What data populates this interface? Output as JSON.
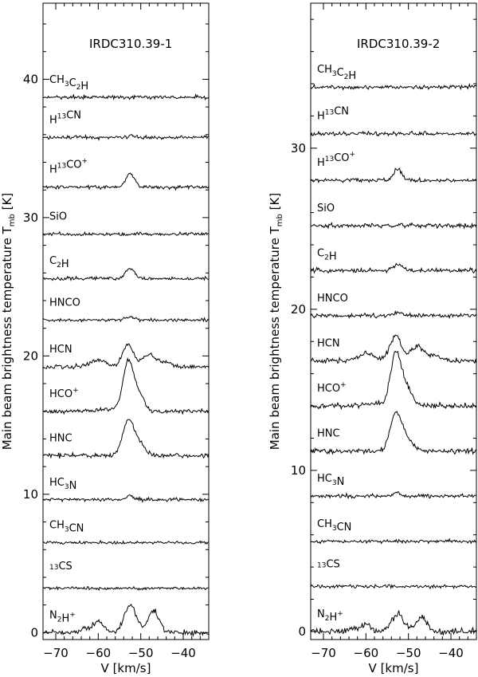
{
  "figure": {
    "shared_ylabel": "Main beam brightness temperature T",
    "ylabel_subscript": "mb",
    "ylabel_unit": " [K]",
    "xlabel": "V [km/s]"
  },
  "chart_data": [
    {
      "type": "line",
      "title": "IRDC310.39-1",
      "xlabel": "V [km/s]",
      "ylabel": "Main beam brightness temperature Tmb [K]",
      "xlim": [
        -73,
        -34
      ],
      "ylim": [
        -0.5,
        45.5
      ],
      "xticks": [
        -70,
        -60,
        -50,
        -40
      ],
      "yticks": [
        0,
        10,
        20,
        30,
        40
      ],
      "series": [
        {
          "name": "CH3C2H",
          "label_main": "CH",
          "label_parts": [
            [
              "CH",
              ""
            ],
            [
              "3",
              "sub"
            ],
            [
              "C",
              ""
            ],
            [
              "2",
              "sub"
            ],
            [
              "H",
              ""
            ]
          ],
          "offset": 38.7,
          "peak": 0.0,
          "rms": 0.12
        },
        {
          "name": "H13CN",
          "label_parts": [
            [
              "H",
              ""
            ],
            [
              "13",
              "sup"
            ],
            [
              "CN",
              ""
            ]
          ],
          "offset": 35.8,
          "peak": 0.1,
          "rms": 0.12
        },
        {
          "name": "H13CO+",
          "label_parts": [
            [
              "H",
              ""
            ],
            [
              "13",
              "sup"
            ],
            [
              "CO",
              ""
            ],
            [
              "+",
              "sup"
            ]
          ],
          "offset": 32.2,
          "peak": 1.0,
          "rms": 0.12
        },
        {
          "name": "SiO",
          "label_parts": [
            [
              "SiO",
              ""
            ]
          ],
          "offset": 28.8,
          "peak": 0.0,
          "rms": 0.12
        },
        {
          "name": "C2H",
          "label_parts": [
            [
              "C",
              ""
            ],
            [
              "2",
              "sub"
            ],
            [
              "H",
              ""
            ]
          ],
          "offset": 25.6,
          "peak": 0.7,
          "rms": 0.12
        },
        {
          "name": "HNCO",
          "label_parts": [
            [
              "HNCO",
              ""
            ]
          ],
          "offset": 22.6,
          "peak": 0.2,
          "rms": 0.12
        },
        {
          "name": "HCN",
          "label_parts": [
            [
              "HCN",
              ""
            ]
          ],
          "offset": 19.2,
          "peak": 1.6,
          "rms": 0.15
        },
        {
          "name": "HCO+",
          "label_parts": [
            [
              "HCO",
              ""
            ],
            [
              "+",
              "sup"
            ]
          ],
          "offset": 16.0,
          "peak": 3.5,
          "rms": 0.15
        },
        {
          "name": "HNC",
          "label_parts": [
            [
              "HNC",
              ""
            ]
          ],
          "offset": 12.8,
          "peak": 2.4,
          "rms": 0.15
        },
        {
          "name": "HC3N",
          "label_parts": [
            [
              "HC",
              ""
            ],
            [
              "3",
              "sub"
            ],
            [
              "N",
              ""
            ]
          ],
          "offset": 9.6,
          "peak": 0.3,
          "rms": 0.12
        },
        {
          "name": "CH3CN",
          "label_parts": [
            [
              "CH",
              ""
            ],
            [
              "3",
              "sub"
            ],
            [
              "CN",
              ""
            ]
          ],
          "offset": 6.5,
          "peak": 0.0,
          "rms": 0.1
        },
        {
          "name": "13CS",
          "label_parts": [
            [
              "13",
              "sup"
            ],
            [
              "CS",
              ""
            ]
          ],
          "offset": 3.2,
          "peak": 0.0,
          "rms": 0.1
        },
        {
          "name": "N2H+",
          "label_parts": [
            [
              "N",
              ""
            ],
            [
              "2",
              "sub"
            ],
            [
              "H",
              ""
            ],
            [
              "+",
              "sup"
            ]
          ],
          "offset": 0.0,
          "peak": 2.0,
          "rms": 0.18
        }
      ]
    },
    {
      "type": "line",
      "title": "IRDC310.39-2",
      "xlabel": "V [km/s]",
      "ylabel": "Main beam brightness temperature Tmb [K]",
      "xlim": [
        -73,
        -34
      ],
      "ylim": [
        -0.5,
        39.0
      ],
      "xticks": [
        -70,
        -60,
        -50,
        -40
      ],
      "yticks": [
        0,
        10,
        20,
        30
      ],
      "series": [
        {
          "name": "CH3C2H",
          "label_parts": [
            [
              "CH",
              ""
            ],
            [
              "3",
              "sub"
            ],
            [
              "C",
              ""
            ],
            [
              "2",
              "sub"
            ],
            [
              "H",
              ""
            ]
          ],
          "offset": 33.8,
          "peak": 0.0,
          "rms": 0.12
        },
        {
          "name": "H13CN",
          "label_parts": [
            [
              "H",
              ""
            ],
            [
              "13",
              "sup"
            ],
            [
              "CN",
              ""
            ]
          ],
          "offset": 30.9,
          "peak": 0.0,
          "rms": 0.12
        },
        {
          "name": "H13CO+",
          "label_parts": [
            [
              "H",
              ""
            ],
            [
              "13",
              "sup"
            ],
            [
              "CO",
              ""
            ],
            [
              "+",
              "sup"
            ]
          ],
          "offset": 28.0,
          "peak": 0.7,
          "rms": 0.12
        },
        {
          "name": "SiO",
          "label_parts": [
            [
              "SiO",
              ""
            ]
          ],
          "offset": 25.2,
          "peak": 0.0,
          "rms": 0.12
        },
        {
          "name": "C2H",
          "label_parts": [
            [
              "C",
              ""
            ],
            [
              "2",
              "sub"
            ],
            [
              "H",
              ""
            ]
          ],
          "offset": 22.4,
          "peak": 0.4,
          "rms": 0.12
        },
        {
          "name": "HNCO",
          "label_parts": [
            [
              "HNCO",
              ""
            ]
          ],
          "offset": 19.6,
          "peak": 0.2,
          "rms": 0.12
        },
        {
          "name": "HCN",
          "label_parts": [
            [
              "HCN",
              ""
            ]
          ],
          "offset": 16.8,
          "peak": 1.6,
          "rms": 0.15
        },
        {
          "name": "HCO+",
          "label_parts": [
            [
              "HCO",
              ""
            ],
            [
              "+",
              "sup"
            ]
          ],
          "offset": 14.0,
          "peak": 3.2,
          "rms": 0.15
        },
        {
          "name": "HNC",
          "label_parts": [
            [
              "HNC",
              ""
            ]
          ],
          "offset": 11.2,
          "peak": 2.2,
          "rms": 0.15
        },
        {
          "name": "HC3N",
          "label_parts": [
            [
              "HC",
              ""
            ],
            [
              "3",
              "sub"
            ],
            [
              "N",
              ""
            ]
          ],
          "offset": 8.4,
          "peak": 0.2,
          "rms": 0.12
        },
        {
          "name": "CH3CN",
          "label_parts": [
            [
              "CH",
              ""
            ],
            [
              "3",
              "sub"
            ],
            [
              "CN",
              ""
            ]
          ],
          "offset": 5.6,
          "peak": 0.0,
          "rms": 0.1
        },
        {
          "name": "13CS",
          "label_parts": [
            [
              "13",
              "sup"
            ],
            [
              "CS",
              ""
            ]
          ],
          "offset": 2.8,
          "peak": 0.0,
          "rms": 0.1
        },
        {
          "name": "N2H+",
          "label_parts": [
            [
              "N",
              ""
            ],
            [
              "2",
              "sub"
            ],
            [
              "H",
              ""
            ],
            [
              "+",
              "sup"
            ]
          ],
          "offset": 0.0,
          "peak": 1.1,
          "rms": 0.18
        }
      ]
    }
  ]
}
